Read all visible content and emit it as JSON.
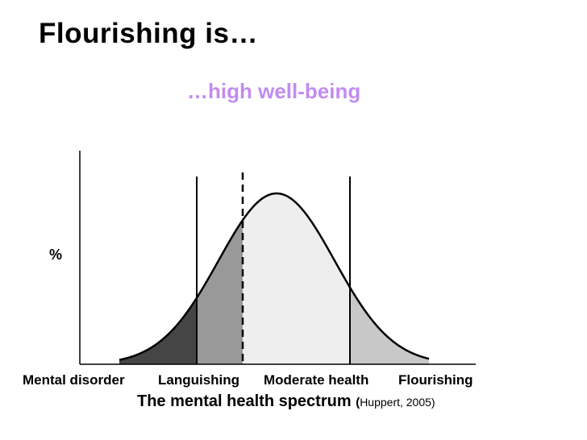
{
  "title": "Flourishing is…",
  "subtitle": "…high well-being",
  "y_axis_label": "%",
  "categories": [
    "Mental disorder",
    "Languishing",
    "Moderate health",
    "Flourishing"
  ],
  "caption": {
    "main": "The mental health spectrum",
    "open_paren": "(",
    "citation": "Huppert, 2005)"
  },
  "colors": {
    "subtitle": "#c18cf0",
    "mental_disorder_fill": "#454545",
    "languishing_fill": "#999999",
    "moderate_health_fill": "#eeeeee",
    "flourishing_fill": "#c8c8c8",
    "outline": "#000000"
  },
  "chart_data": {
    "type": "area",
    "description_series": "normal distribution curve",
    "regions": [
      {
        "label": "Mental disorder",
        "color": "#454545"
      },
      {
        "label": "Languishing",
        "color": "#999999"
      },
      {
        "label": "Moderate health",
        "color": "#eeeeee"
      },
      {
        "label": "Flourishing",
        "color": "#c8c8c8"
      }
    ],
    "dividers": [
      {
        "between": [
          "Mental disorder",
          "Languishing"
        ],
        "style": "solid"
      },
      {
        "between": [
          "Languishing",
          "Moderate health"
        ],
        "style": "dashed"
      },
      {
        "between": [
          "Moderate health",
          "Flourishing"
        ],
        "style": "solid"
      }
    ],
    "xlabel": "The mental health spectrum",
    "ylabel": "%",
    "grid": false
  }
}
